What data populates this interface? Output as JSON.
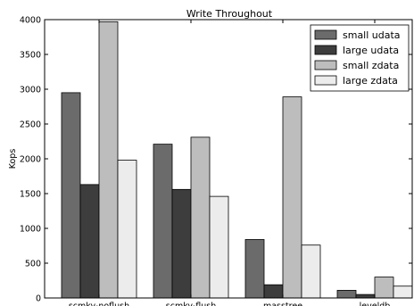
{
  "chart_data": {
    "type": "bar",
    "title": "Write Throughout",
    "xlabel": "",
    "ylabel": "Kops",
    "ylim": [
      0,
      4000
    ],
    "yticks": [
      0,
      500,
      1000,
      1500,
      2000,
      2500,
      3000,
      3500,
      4000
    ],
    "categories": [
      "scmky-noflush",
      "scmky-flush",
      "masstree",
      "leveldb"
    ],
    "series": [
      {
        "name": "small udata",
        "color": "#6b6b6b",
        "values": [
          2950,
          2210,
          840,
          110
        ]
      },
      {
        "name": "large udata",
        "color": "#3d3d3d",
        "values": [
          1630,
          1560,
          190,
          50
        ]
      },
      {
        "name": "small zdata",
        "color": "#bdbdbd",
        "values": [
          3970,
          2310,
          2890,
          300
        ]
      },
      {
        "name": "large zdata",
        "color": "#ececec",
        "values": [
          1980,
          1460,
          760,
          170
        ]
      }
    ],
    "legend_position": "top-right",
    "grid": false
  }
}
